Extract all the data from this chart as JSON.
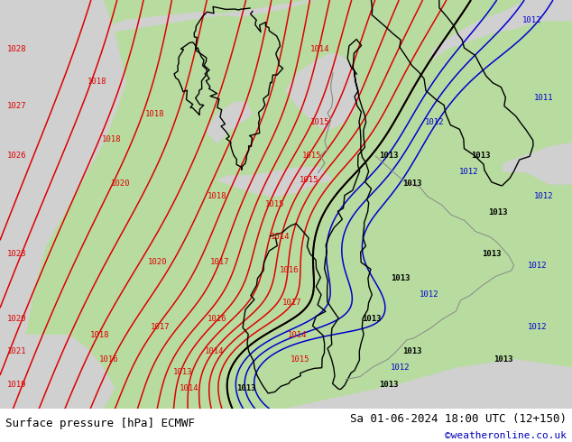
{
  "title_left": "Surface pressure [hPa] ECMWF",
  "title_right": "Sa 01-06-2024 18:00 UTC (12+150)",
  "copyright": "©weatheronline.co.uk",
  "fig_width": 6.34,
  "fig_height": 4.9,
  "dpi": 100,
  "bg_white": "#ffffff",
  "map_bg_green": "#b8dca0",
  "map_bg_gray": "#d0d0d0",
  "isobar_color_red": "#dd0000",
  "isobar_color_blue": "#0000cc",
  "isobar_color_black": "#000000",
  "border_color_black": "#000000",
  "border_color_gray": "#888888",
  "label_fontsize": 6.5,
  "footer_fontsize": 9,
  "copyright_fontsize": 8,
  "copyright_color": "#0000bb",
  "contour_lw_red": 1.1,
  "contour_lw_blue": 1.1,
  "contour_lw_black": 1.5
}
